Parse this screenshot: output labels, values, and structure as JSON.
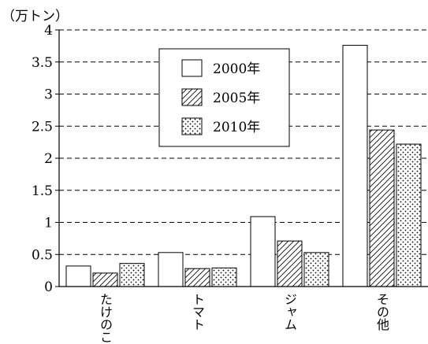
{
  "chart_data": {
    "type": "bar",
    "unit_label": "（万トン）",
    "categories": [
      "たけのこ",
      "トマト",
      "ジャム",
      "その他"
    ],
    "series": [
      {
        "name": "2000年",
        "values": [
          0.32,
          0.53,
          1.09,
          3.76
        ],
        "pattern": "white"
      },
      {
        "name": "2005年",
        "values": [
          0.21,
          0.28,
          0.71,
          2.44
        ],
        "pattern": "hatch"
      },
      {
        "name": "2010年",
        "values": [
          0.36,
          0.29,
          0.53,
          2.22
        ],
        "pattern": "dots"
      }
    ],
    "y_ticks": [
      "0",
      "0.5",
      "1",
      "1.5",
      "2",
      "2.5",
      "3",
      "3.5",
      "4"
    ],
    "ylim": [
      0,
      4
    ],
    "grid": "dashed horizontal",
    "legend_position": "top-center",
    "colors": {
      "stroke": "#000000",
      "fill": "#ffffff"
    }
  }
}
